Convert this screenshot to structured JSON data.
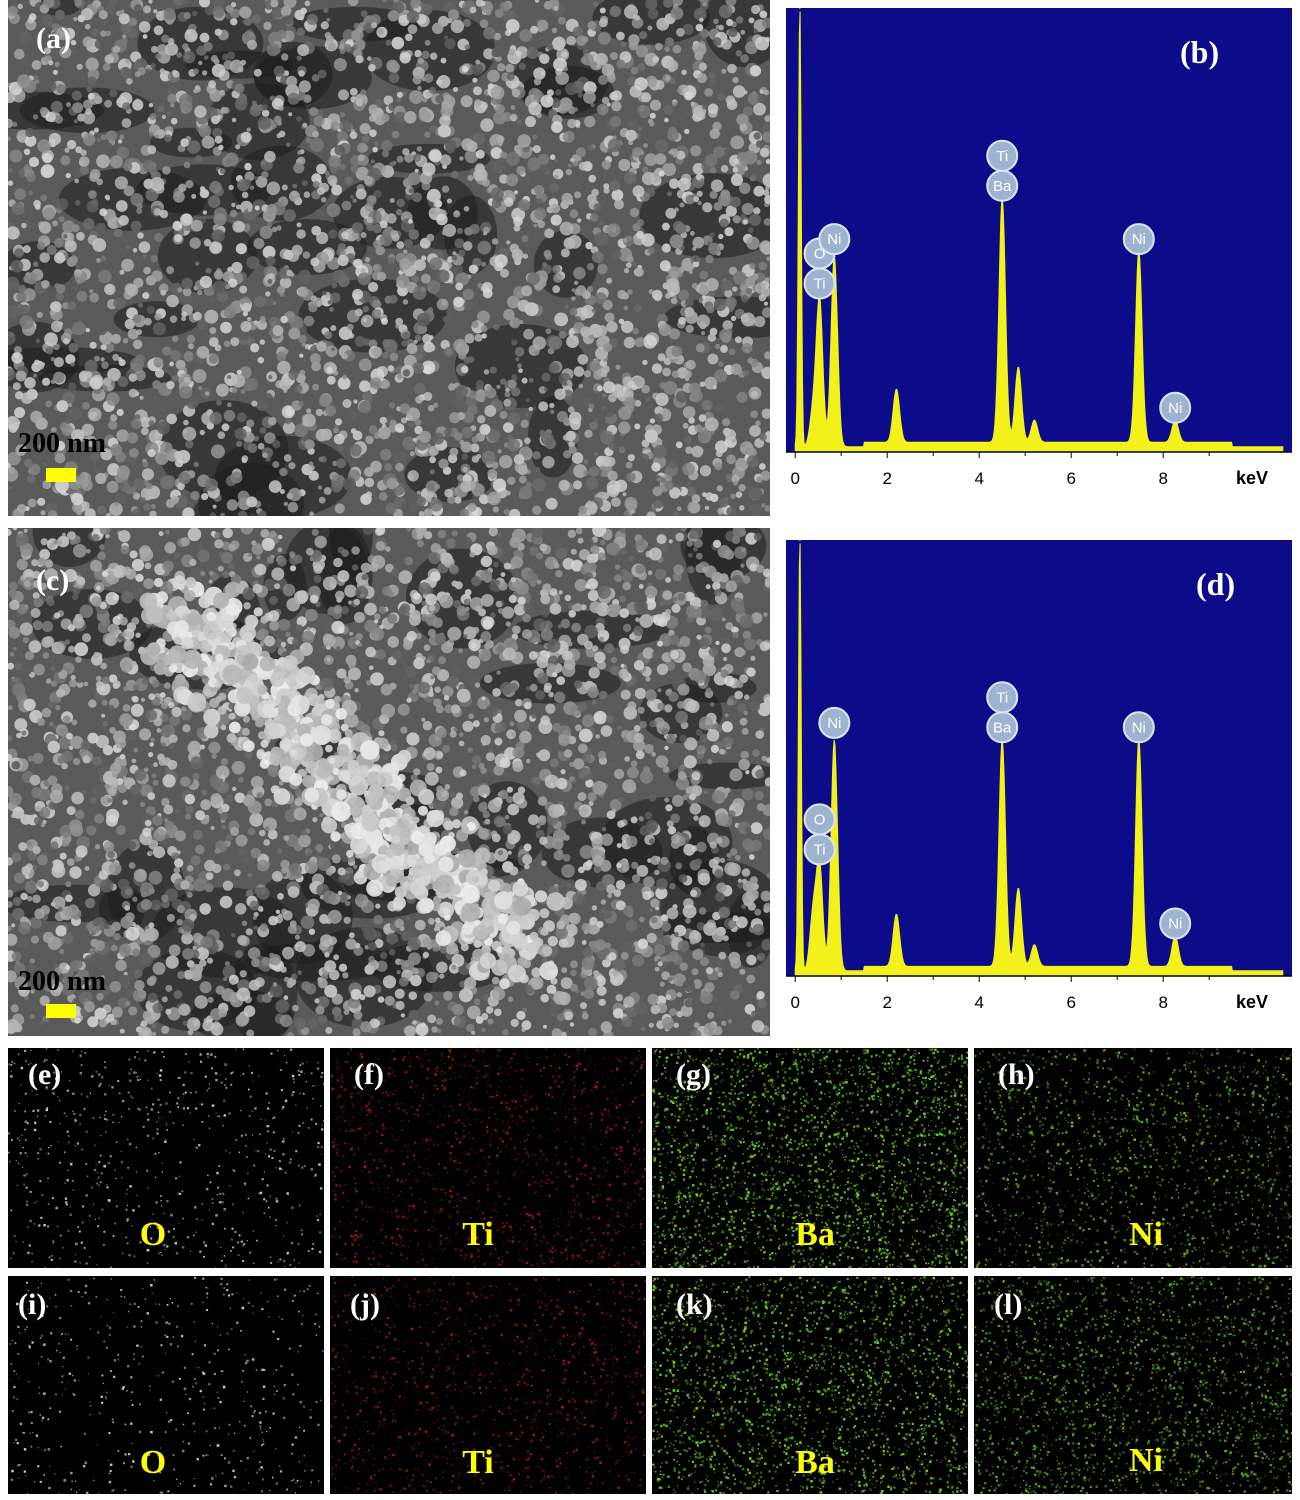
{
  "panels": {
    "a": {
      "label": "(a)",
      "scale": "200 nm"
    },
    "b": {
      "label": "(b)"
    },
    "c": {
      "label": "(c)",
      "scale": "200 nm"
    },
    "d": {
      "label": "(d)"
    },
    "e": {
      "label": "(e)",
      "element": "O"
    },
    "f": {
      "label": "(f)",
      "element": "Ti"
    },
    "g": {
      "label": "(g)",
      "element": "Ba"
    },
    "h": {
      "label": "(h)",
      "element": "Ni"
    },
    "i": {
      "label": "(i)",
      "element": "O"
    },
    "j": {
      "label": "(j)",
      "element": "Ti"
    },
    "k": {
      "label": "(k)",
      "element": "Ba"
    },
    "l": {
      "label": "(l)",
      "element": "Ni"
    }
  },
  "colors": {
    "eds_background": "#0c0c8a",
    "spectrum": "#f2f21a",
    "peak_badge": "#9db3cf",
    "label_yellow": "#ffff00",
    "O": "#d8d8d8",
    "Ti": "#b01818",
    "Ba": "#6ee21e",
    "Ni": "#5cc41a"
  },
  "chart_data": [
    {
      "type": "line",
      "panel": "b",
      "xlabel": "keV",
      "xlim": [
        -0.2,
        10.8
      ],
      "xticks": [
        "0",
        "2",
        "4",
        "6",
        "8"
      ],
      "peaks": [
        {
          "x": 0.1,
          "y": 1.0
        },
        {
          "x": 0.39,
          "y": 0.08
        },
        {
          "x": 0.53,
          "y": 0.33
        },
        {
          "x": 0.85,
          "y": 0.43
        },
        {
          "x": 2.2,
          "y": 0.12
        },
        {
          "x": 4.5,
          "y": 0.55
        },
        {
          "x": 4.85,
          "y": 0.17
        },
        {
          "x": 5.2,
          "y": 0.05
        },
        {
          "x": 7.47,
          "y": 0.43
        },
        {
          "x": 8.26,
          "y": 0.05
        }
      ],
      "peak_labels": [
        {
          "x": 0.53,
          "elements": [
            "O",
            "Ti"
          ]
        },
        {
          "x": 0.85,
          "elements": [
            "Ni"
          ]
        },
        {
          "x": 4.5,
          "elements": [
            "Ti",
            "Ba"
          ]
        },
        {
          "x": 7.47,
          "elements": [
            "Ni"
          ]
        },
        {
          "x": 8.26,
          "elements": [
            "Ni"
          ]
        }
      ]
    },
    {
      "type": "line",
      "panel": "d",
      "xlabel": "keV",
      "xlim": [
        -0.2,
        10.8
      ],
      "xticks": [
        "0",
        "2",
        "4",
        "6",
        "8"
      ],
      "peaks": [
        {
          "x": 0.1,
          "y": 1.0
        },
        {
          "x": 0.39,
          "y": 0.13
        },
        {
          "x": 0.53,
          "y": 0.24
        },
        {
          "x": 0.85,
          "y": 0.53
        },
        {
          "x": 2.2,
          "y": 0.12
        },
        {
          "x": 4.5,
          "y": 0.52
        },
        {
          "x": 4.85,
          "y": 0.18
        },
        {
          "x": 5.2,
          "y": 0.05
        },
        {
          "x": 7.47,
          "y": 0.52
        },
        {
          "x": 8.26,
          "y": 0.07
        }
      ],
      "peak_labels": [
        {
          "x": 0.53,
          "elements": [
            "O",
            "Ti"
          ]
        },
        {
          "x": 0.85,
          "elements": [
            "Ni"
          ]
        },
        {
          "x": 4.5,
          "elements": [
            "Ti",
            "Ba"
          ]
        },
        {
          "x": 7.47,
          "elements": [
            "Ni"
          ]
        },
        {
          "x": 8.26,
          "elements": [
            "Ni"
          ]
        }
      ]
    }
  ]
}
